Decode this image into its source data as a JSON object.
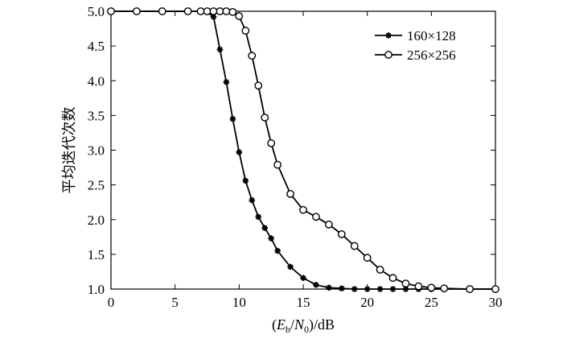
{
  "chart_data": {
    "type": "line",
    "xlabel": "(E_b/N_0)/dB",
    "xlabel_parts": {
      "open": "(",
      "E": "E",
      "E_sub": "b",
      "slash": "/",
      "N": "N",
      "N_sub": "0",
      "close": ")/dB"
    },
    "ylabel": "平均迭代次数",
    "xlim": [
      0,
      30
    ],
    "ylim": [
      1.0,
      5.0
    ],
    "xticks": [
      0,
      5,
      10,
      15,
      20,
      25,
      30
    ],
    "yticks": [
      "1.0",
      "1.5",
      "2.0",
      "2.5",
      "3.0",
      "3.5",
      "4.0",
      "4.5",
      "5.0"
    ],
    "legend_position": "top-right",
    "grid": false,
    "series": [
      {
        "name": "160×128",
        "marker": "asterisk",
        "x": [
          0,
          2,
          4,
          6,
          7,
          7.5,
          8,
          8.5,
          9,
          9.5,
          10,
          10.5,
          11,
          11.5,
          12,
          12.5,
          13,
          14,
          15,
          16,
          17,
          18,
          19,
          20,
          21,
          22,
          23,
          24,
          25,
          26,
          28,
          30
        ],
        "y": [
          5.0,
          5.0,
          5.0,
          5.0,
          5.0,
          4.99,
          4.92,
          4.45,
          3.98,
          3.45,
          2.97,
          2.56,
          2.28,
          2.04,
          1.88,
          1.73,
          1.55,
          1.32,
          1.16,
          1.06,
          1.02,
          1.01,
          1.0,
          1.0,
          1.0,
          1.0,
          1.0,
          1.0,
          1.0,
          1.0,
          1.0,
          1.0
        ]
      },
      {
        "name": "256×256",
        "marker": "circle",
        "x": [
          0,
          2,
          4,
          6,
          7,
          7.5,
          8,
          8.5,
          9,
          9.5,
          10,
          10.5,
          11,
          11.5,
          12,
          12.5,
          13,
          14,
          15,
          16,
          17,
          18,
          19,
          20,
          21,
          22,
          23,
          24,
          25,
          26,
          28,
          30
        ],
        "y": [
          5.0,
          5.0,
          5.0,
          5.0,
          5.0,
          5.0,
          5.0,
          5.0,
          5.0,
          4.99,
          4.93,
          4.72,
          4.36,
          3.93,
          3.47,
          3.1,
          2.79,
          2.37,
          2.14,
          2.04,
          1.93,
          1.79,
          1.62,
          1.45,
          1.28,
          1.16,
          1.08,
          1.04,
          1.02,
          1.01,
          1.0,
          1.0
        ]
      }
    ]
  }
}
